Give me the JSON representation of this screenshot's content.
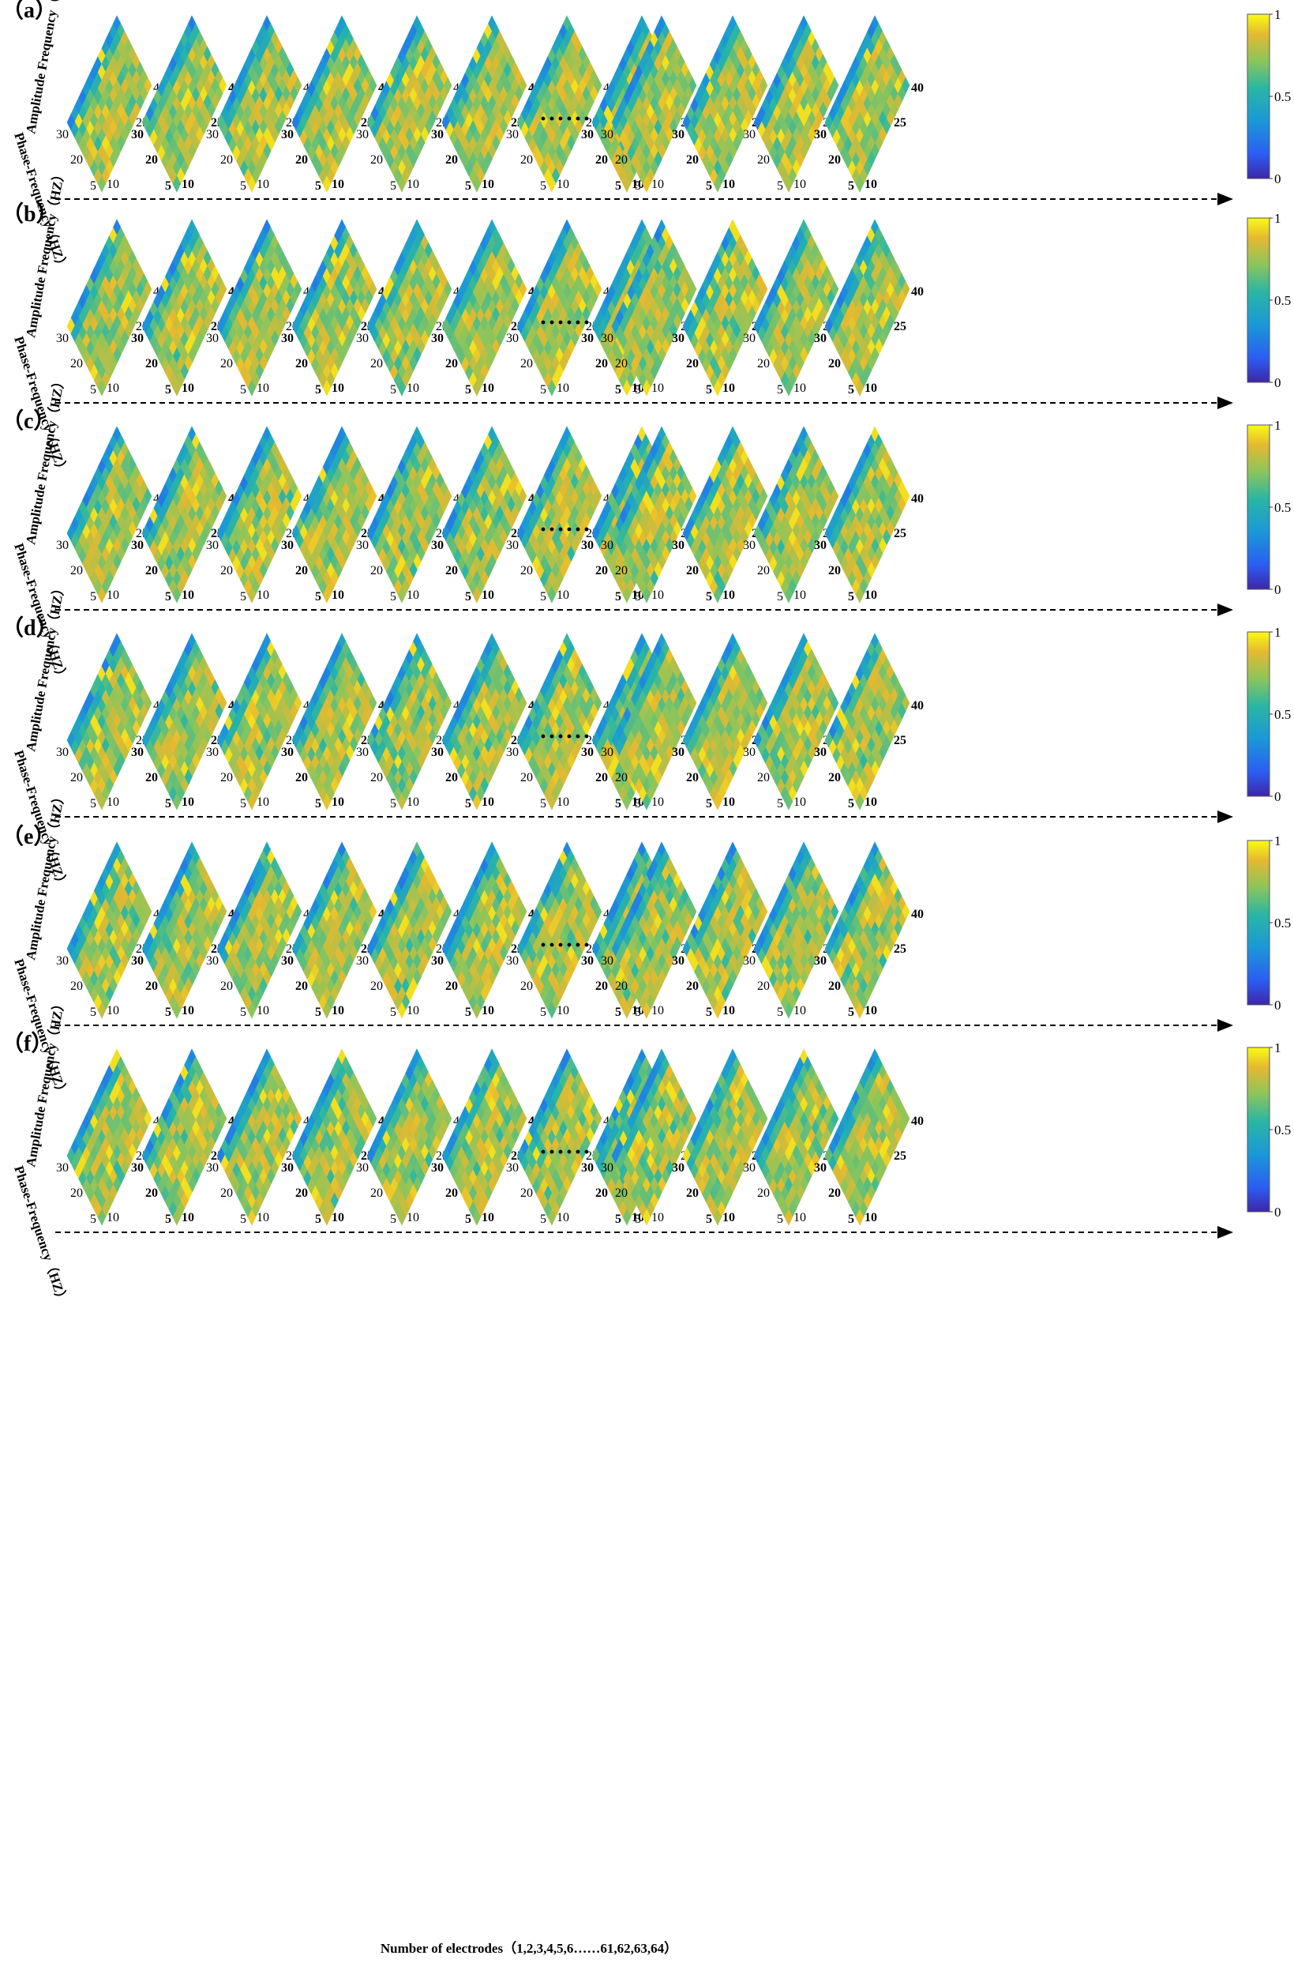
{
  "chart_data": {
    "type": "heatmap",
    "description_free": true,
    "colormap": "parula",
    "colorbar": {
      "min": 0,
      "max": 1,
      "ticks": [
        0,
        0.5,
        1
      ]
    },
    "axes": {
      "amplitude_label": "Amplitude Frequency（HZ）",
      "phase_label": "Phase-Frequency（HZ）",
      "amplitude_range": [
        25,
        45
      ],
      "phase_range": [
        5,
        30
      ],
      "amplitude_ticks": [
        "40",
        "25"
      ],
      "phase_ticks": [
        "30",
        "20",
        "5",
        "10"
      ]
    },
    "ellipsis": "······",
    "electrode_caption": "Number of electrodes（1,2,3,4,5,6……61,62,63,64）",
    "panels": [
      {
        "label": "（a）",
        "plots_before_gap": 8,
        "plots_after_gap": 4
      },
      {
        "label": "（b）",
        "plots_before_gap": 8,
        "plots_after_gap": 4
      },
      {
        "label": "（c）",
        "plots_before_gap": 8,
        "plots_after_gap": 4
      },
      {
        "label": "（d）",
        "plots_before_gap": 8,
        "plots_after_gap": 4
      },
      {
        "label": "（e）",
        "plots_before_gap": 8,
        "plots_after_gap": 4
      },
      {
        "label": "（f）",
        "plots_before_gap": 8,
        "plots_after_gap": 4
      }
    ]
  },
  "colors": {
    "low": "#3e26a8",
    "mid": "#2ab6a4",
    "high": "#f9fb15",
    "dominant": "#d6ad3a",
    "dashed_line": "#000000"
  }
}
